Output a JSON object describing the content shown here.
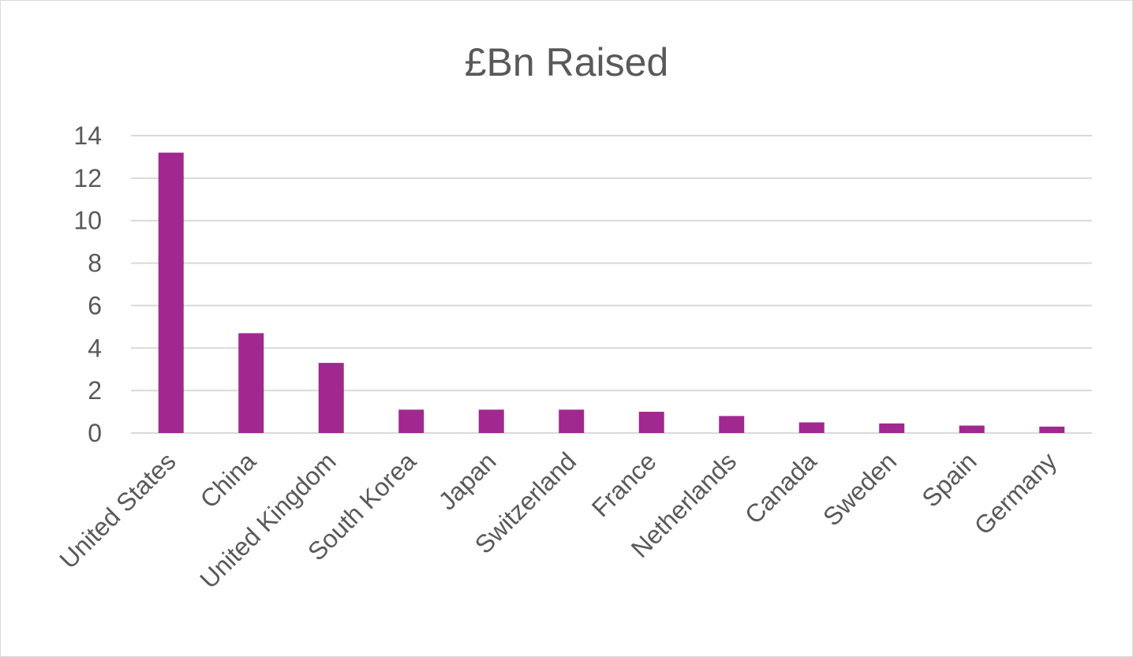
{
  "chart_data": {
    "type": "bar",
    "title": "£Bn Raised",
    "xlabel": "",
    "ylabel": "",
    "categories": [
      "United States",
      "China",
      "United Kingdom",
      "South Korea",
      "Japan",
      "Switzerland",
      "France",
      "Netherlands",
      "Canada",
      "Sweden",
      "Spain",
      "Germany"
    ],
    "values": [
      13.2,
      4.7,
      3.3,
      1.1,
      1.1,
      1.1,
      1.0,
      0.8,
      0.5,
      0.45,
      0.35,
      0.3
    ],
    "ylim": [
      0,
      14
    ],
    "yticks": [
      0,
      2,
      4,
      6,
      8,
      10,
      12,
      14
    ],
    "grid": true,
    "legend": "none",
    "bar_color": "#A0288F",
    "gridline_color": "#D9D9D9",
    "text_color": "#595959"
  }
}
